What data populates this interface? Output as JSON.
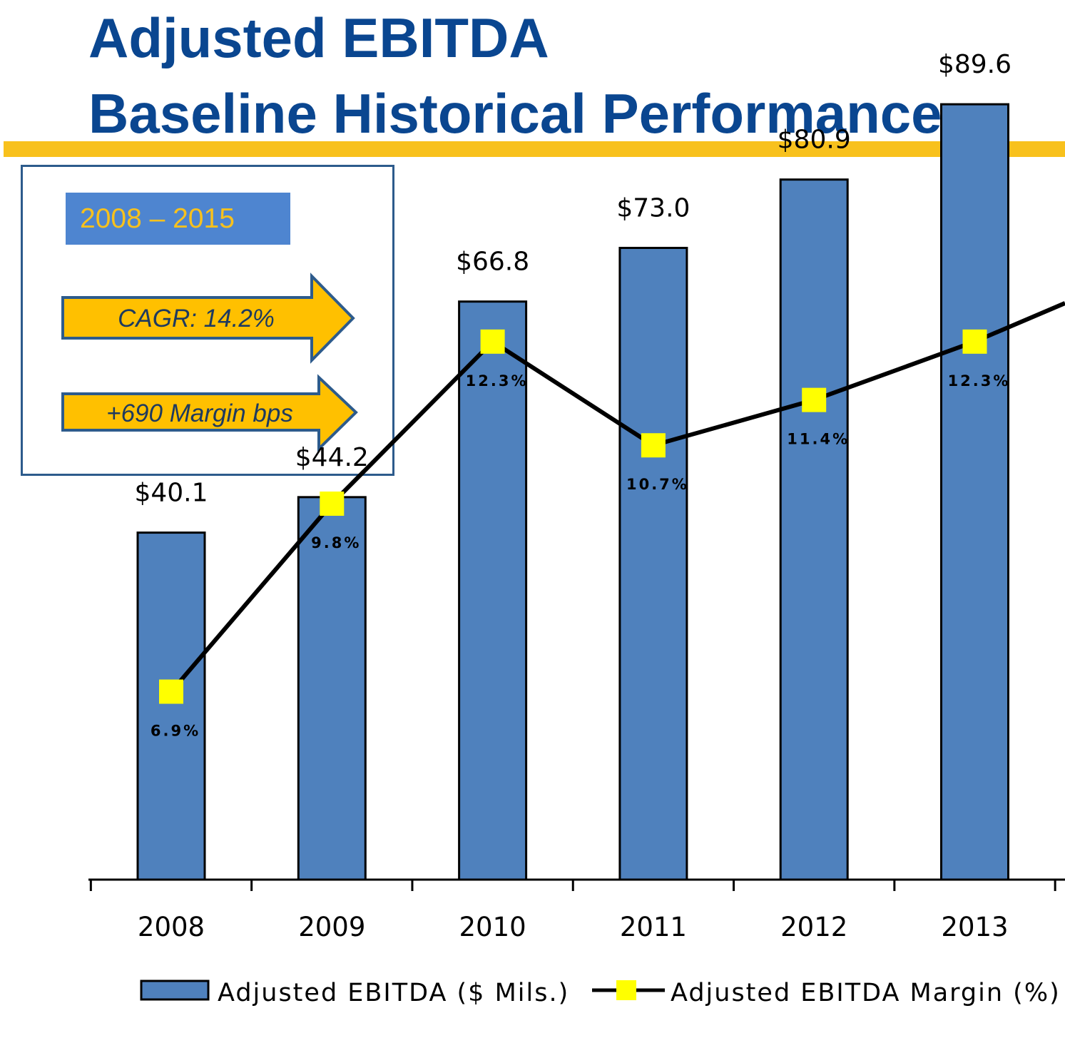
{
  "header": {
    "title_line1": "Adjusted EBITDA",
    "title_line2": "Baseline Historical Performance"
  },
  "summary": {
    "period": "2008 – 2015",
    "cagr": "CAGR:  14.2%",
    "margin": "+690 Margin bps"
  },
  "colors": {
    "title": "#0a4690",
    "rule": "#f8c11d",
    "bar": "#4f81bd",
    "marker": "#ffff00",
    "arrow": "#ffc000",
    "badge": "#4e85d0"
  },
  "chart_data": {
    "type": "bar",
    "categories": [
      "2008",
      "2009",
      "2010",
      "2011",
      "2012",
      "2013"
    ],
    "series": [
      {
        "name": "Adjusted EBITDA ($ Mils.)",
        "type": "bar",
        "values": [
          40.1,
          44.2,
          66.8,
          73.0,
          80.9,
          89.6
        ],
        "labels": [
          "$40.1",
          "$44.2",
          "$66.8",
          "$73.0",
          "$80.9",
          "$89.6"
        ]
      },
      {
        "name": "Adjusted EBITDA Margin (%)",
        "type": "line",
        "values": [
          6.9,
          9.8,
          12.3,
          10.7,
          11.4,
          12.3
        ],
        "labels": [
          "6.9%",
          "9.8%",
          "12.3%",
          "10.7%",
          "11.4%",
          "12.3%"
        ]
      }
    ],
    "ylim": [
      0,
      100
    ],
    "line_ylim": [
      4,
      17.35
    ],
    "legend_position": "bottom",
    "grid": false
  }
}
